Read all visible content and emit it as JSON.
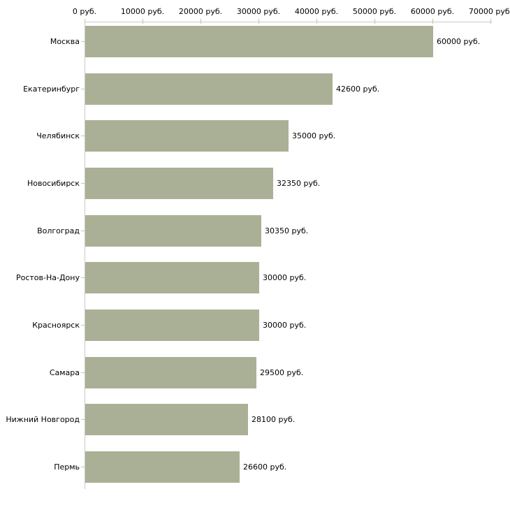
{
  "chart_data": {
    "type": "bar",
    "orientation": "horizontal",
    "title": "",
    "unit": "руб.",
    "categories": [
      "Москва",
      "Екатеринбург",
      "Челябинск",
      "Новосибирск",
      "Волгоград",
      "Ростов-На-Дону",
      "Красноярск",
      "Самара",
      "Нижний Новгород",
      "Пермь"
    ],
    "values": [
      60000,
      42600,
      35000,
      32350,
      30350,
      30000,
      30000,
      29500,
      28100,
      26600
    ],
    "value_labels": [
      "60000 руб.",
      "42600 руб.",
      "35000 руб.",
      "32350 руб.",
      "30350 руб.",
      "30000 руб.",
      "30000 руб.",
      "29500 руб.",
      "28100 руб.",
      "26600 руб."
    ],
    "x_axis": {
      "position": "top",
      "min": 0,
      "max": 70000,
      "tick_step": 10000,
      "tick_values": [
        0,
        10000,
        20000,
        30000,
        40000,
        50000,
        60000,
        70000
      ],
      "tick_labels": [
        "0 руб.",
        "10000 руб.",
        "20000 руб.",
        "30000 руб.",
        "40000 руб.",
        "50000 руб.",
        "60000 руб.",
        "70000 руб."
      ]
    },
    "grid": false,
    "legend": false,
    "colors": {
      "bar": "#aab095",
      "axis_line": "#c9c9c9",
      "tick_mark": "#c6c79b",
      "text": "#000000",
      "background": "#ffffff"
    }
  }
}
